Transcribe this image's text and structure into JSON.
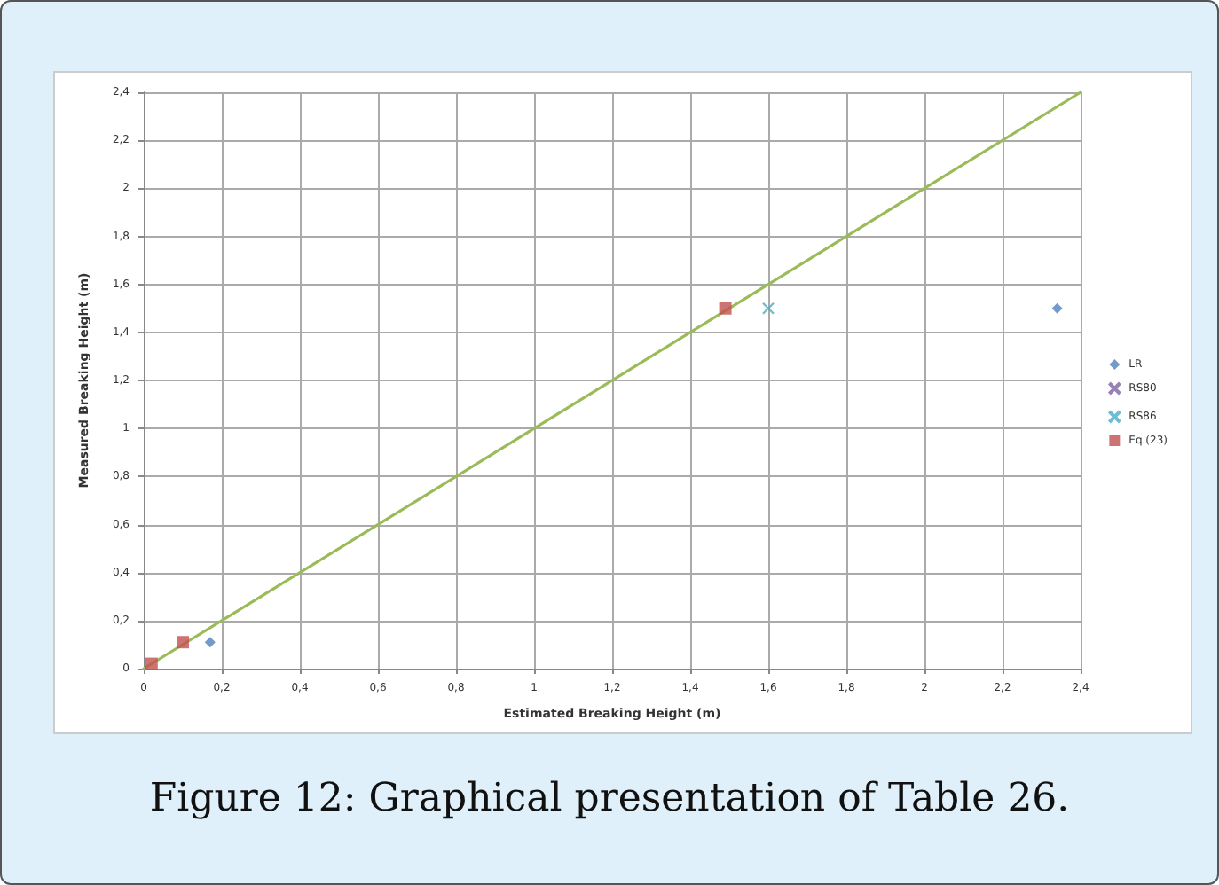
{
  "chart_data": {
    "type": "scatter",
    "xlabel": "Estimated Breaking Height (m)",
    "ylabel": "Measured Breaking Height (m)",
    "annotations": [
      "Figure 12: Graphical presentation of Table 26."
    ],
    "xlim": [
      0,
      2.4
    ],
    "ylim": [
      0,
      2.4
    ],
    "xticks": [
      0,
      {
        "value": 0.2,
        "label": "0,2"
      },
      {
        "value": 0.4,
        "label": "0,4"
      },
      {
        "value": 0.6,
        "label": "0,6"
      },
      {
        "value": 0.8,
        "label": "0,8"
      },
      1,
      {
        "value": 1.2,
        "label": "1,2"
      },
      {
        "value": 1.4,
        "label": "1,4"
      },
      {
        "value": 1.6,
        "label": "1,6"
      },
      {
        "value": 1.8,
        "label": "1,8"
      },
      2,
      {
        "value": 2.2,
        "label": "2,2"
      },
      {
        "value": 2.4,
        "label": "2,4"
      }
    ],
    "yticks": [
      0,
      {
        "value": 0.2,
        "label": "0,2"
      },
      {
        "value": 0.4,
        "label": "0,4"
      },
      {
        "value": 0.6,
        "label": "0,6"
      },
      {
        "value": 0.8,
        "label": "0,8"
      },
      1,
      {
        "value": 1.2,
        "label": "1,2"
      },
      {
        "value": 1.4,
        "label": "1,4"
      },
      {
        "value": 1.6,
        "label": "1,6"
      },
      {
        "value": 1.8,
        "label": "1,8"
      },
      2,
      {
        "value": 2.2,
        "label": "2,2"
      },
      {
        "value": 2.4,
        "label": "2,4"
      }
    ],
    "grid": true,
    "legend": "right",
    "series": [
      {
        "type": "line",
        "color": "#9bbb59",
        "x": [
          0,
          2.4
        ],
        "values": [
          0,
          2.4
        ],
        "marker": "none",
        "line_style": "solid"
      },
      {
        "name": "LR",
        "color": "#4f81bd",
        "marker": "diamond",
        "x": [
          0.17,
          2.34
        ],
        "values": [
          0.11,
          1.5
        ]
      },
      {
        "name": "RS80",
        "color": "#8064a2",
        "marker": "cross"
      },
      {
        "name": "RS86",
        "color": "#4bacc6",
        "marker": "cross",
        "x": [
          1.6
        ],
        "values": [
          1.5
        ]
      },
      {
        "name": "Eq.(23)",
        "color": "#c0504d",
        "marker": "square",
        "x": [
          0.02,
          0.1,
          1.49
        ],
        "values": [
          0.02,
          0.11,
          1.5
        ]
      }
    ]
  }
}
